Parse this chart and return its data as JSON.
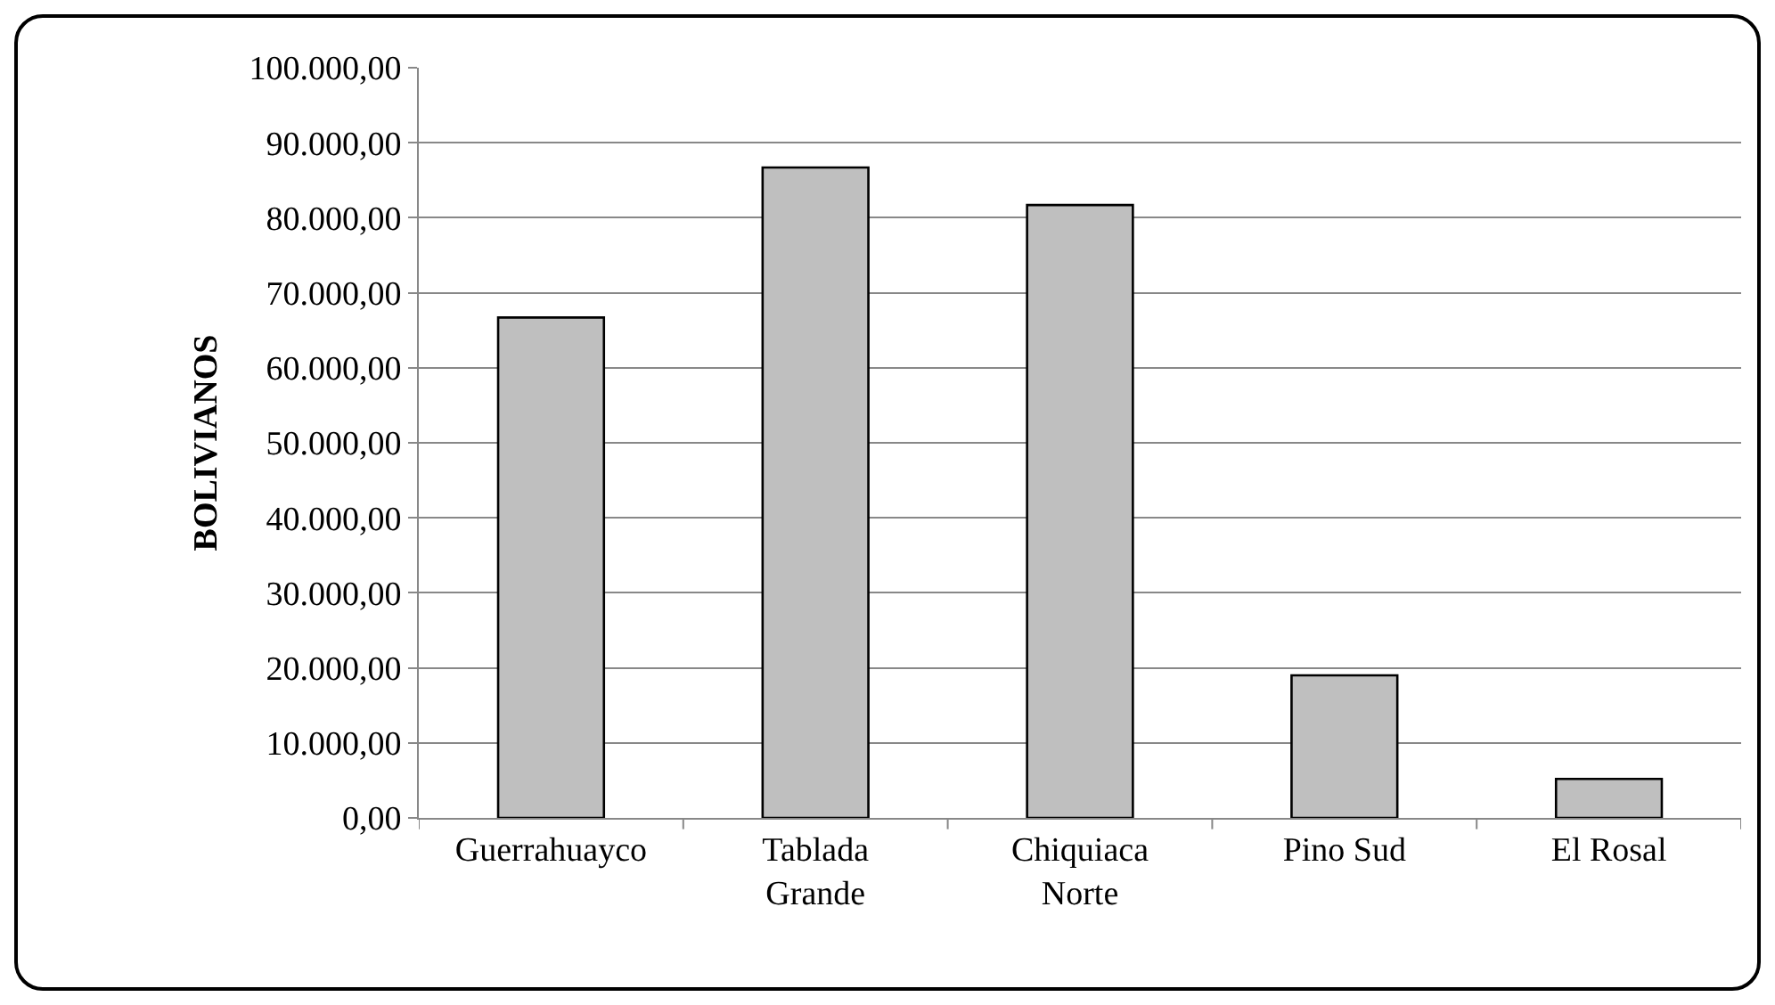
{
  "chart_data": {
    "type": "bar",
    "ylabel": "BOLIVIANOS",
    "categories": [
      "Guerrahuayco",
      "Tablada\nGrande",
      "Chiquiaca\nNorte",
      "Pino Sud",
      "El Rosal"
    ],
    "values": [
      66700,
      86700,
      81700,
      19000,
      5200
    ],
    "color": "#bfbfbf",
    "ylim": [
      0,
      100000
    ],
    "yticks": [
      {
        "value": 0,
        "label": "0,00"
      },
      {
        "value": 10000,
        "label": "10.000,00"
      },
      {
        "value": 20000,
        "label": "20.000,00"
      },
      {
        "value": 30000,
        "label": "30.000,00"
      },
      {
        "value": 40000,
        "label": "40.000,00"
      },
      {
        "value": 50000,
        "label": "50.000,00"
      },
      {
        "value": 60000,
        "label": "60.000,00"
      },
      {
        "value": 70000,
        "label": "70.000,00"
      },
      {
        "value": 80000,
        "label": "80.000,00"
      },
      {
        "value": 90000,
        "label": "90.000,00"
      },
      {
        "value": 100000,
        "label": "100.000,00"
      }
    ],
    "grid": "y"
  }
}
